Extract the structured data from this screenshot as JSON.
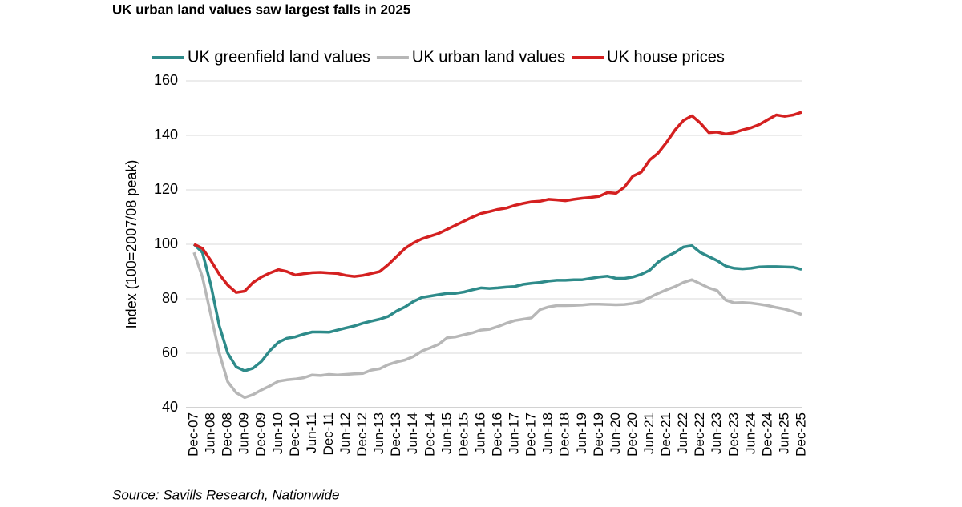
{
  "chart_data": {
    "type": "line",
    "title": "UK urban land values saw largest falls in 2025",
    "y_label": "Index (100=2007/08 peak)",
    "source": "Source: Savills Research, Nationwide",
    "categories": [
      "Dec-07",
      null,
      "Jun-08",
      null,
      "Dec-08",
      null,
      "Jun-09",
      null,
      "Dec-09",
      null,
      "Jun-10",
      null,
      "Dec-10",
      null,
      "Jun-11",
      null,
      "Dec-11",
      null,
      "Jun-12",
      null,
      "Dec-12",
      null,
      "Jun-13",
      null,
      "Dec-13",
      null,
      "Jun-14",
      null,
      "Dec-14",
      null,
      "Jun-15",
      null,
      "Dec-15",
      null,
      "Jun-16",
      null,
      "Dec-16",
      null,
      "Jun-17",
      null,
      "Dec-17",
      null,
      "Jun-18",
      null,
      "Dec-18",
      null,
      "Jun-19",
      null,
      "Dec-19",
      null,
      "Jun-20",
      null,
      "Dec-20",
      null,
      "Jun-21",
      null,
      "Dec-21",
      null,
      "Jun-22",
      null,
      "Dec-22",
      null,
      "Jun-23",
      null,
      "Dec-23",
      null,
      "Jun-24",
      null,
      "Dec-24",
      null,
      "Jun-25",
      null,
      "Dec-25"
    ],
    "series": [
      {
        "name": "UK greenfield land values",
        "color": "#2e8b8a",
        "values": [
          100,
          97,
          85,
          70,
          60,
          55,
          53.5,
          54.5,
          57,
          61,
          64,
          65.5,
          66,
          67,
          67.8,
          67.8,
          67.7,
          68.5,
          69.3,
          70,
          71,
          71.8,
          72.5,
          73.5,
          75.5,
          77,
          79,
          80.5,
          81,
          81.5,
          82,
          82,
          82.5,
          83.3,
          84,
          83.8,
          84,
          84.3,
          84.5,
          85.3,
          85.7,
          86,
          86.5,
          86.8,
          86.8,
          87,
          87,
          87.5,
          88,
          88.3,
          87.5,
          87.5,
          88,
          89,
          90.5,
          93.5,
          95.5,
          97,
          99,
          99.5,
          97,
          95.5,
          94,
          92,
          91.2,
          91,
          91.2,
          91.7,
          91.8,
          91.8,
          91.7,
          91.6,
          90.8
        ]
      },
      {
        "name": "UK urban land values",
        "color": "#b7b7b7",
        "values": [
          97,
          88,
          74,
          60,
          49.5,
          45.5,
          43.7,
          44.8,
          46.5,
          48,
          49.7,
          50.2,
          50.5,
          51,
          52,
          51.8,
          52.2,
          52,
          52.2,
          52.4,
          52.6,
          53.8,
          54.3,
          55.8,
          56.8,
          57.5,
          58.8,
          60.8,
          62,
          63.3,
          65.7,
          66,
          66.8,
          67.5,
          68.5,
          68.8,
          69.8,
          71,
          72,
          72.5,
          73,
          76,
          77,
          77.5,
          77.5,
          77.6,
          77.7,
          78,
          78,
          77.9,
          77.8,
          77.9,
          78.3,
          79,
          80.5,
          82,
          83.3,
          84.5,
          86,
          87,
          85.5,
          84,
          83,
          79.5,
          78.5,
          78.6,
          78.4,
          78,
          77.5,
          76.8,
          76.2,
          75.3,
          74.2
        ]
      },
      {
        "name": "UK house prices",
        "color": "#d42020",
        "values": [
          100,
          98.5,
          94,
          89,
          85,
          82.3,
          82.8,
          86,
          88,
          89.5,
          90.7,
          90,
          88.7,
          89.2,
          89.6,
          89.7,
          89.5,
          89.3,
          88.6,
          88.2,
          88.6,
          89.3,
          90,
          92.5,
          95.5,
          98.5,
          100.5,
          102,
          103,
          104,
          105.5,
          107,
          108.5,
          110,
          111.3,
          112,
          112.8,
          113.3,
          114.3,
          115,
          115.6,
          115.8,
          116.5,
          116.3,
          116,
          116.5,
          116.9,
          117.2,
          117.6,
          119,
          118.7,
          121,
          125,
          126.5,
          131,
          133.5,
          137.5,
          142,
          145.5,
          147.2,
          144.5,
          141,
          141.2,
          140.5,
          141,
          142,
          142.8,
          144,
          145.8,
          147.5,
          147,
          147.5,
          148.5
        ]
      }
    ],
    "ylim": [
      40,
      160
    ],
    "yticks": [
      40,
      60,
      80,
      100,
      120,
      140,
      160
    ],
    "grid": true
  }
}
